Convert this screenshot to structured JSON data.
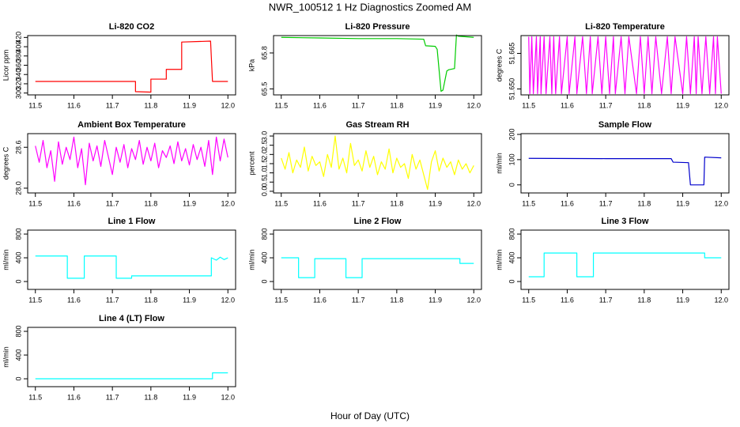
{
  "title": "NWR_100512  1 Hz Diagnostics Zoomed AM",
  "x_axis_label": "Hour of Day (UTC)",
  "chart_data": [
    {
      "type": "line",
      "title": "Li-820 CO2",
      "ylabel": "Licor ppm",
      "color": "#ff0000",
      "x": [
        11.5,
        11.76,
        11.76,
        11.8,
        11.8,
        11.84,
        11.84,
        11.88,
        11.88,
        11.955,
        11.96,
        12.0
      ],
      "values": [
        325,
        325,
        303,
        302,
        330,
        330,
        351,
        351,
        410,
        412,
        325,
        325
      ],
      "xlim": [
        11.48,
        12.02
      ],
      "xticks": [
        11.5,
        11.6,
        11.7,
        11.8,
        11.9,
        {
          "value": 12,
          "label": "12.0"
        }
      ],
      "ylim": [
        296,
        424
      ],
      "yticks": [
        300,
        320,
        340,
        360,
        380,
        400,
        420
      ]
    },
    {
      "type": "line",
      "title": "Li-820 Pressure",
      "ylabel": "kPa",
      "color": "#00cc00",
      "x": [
        11.5,
        11.6,
        11.7,
        11.8,
        11.87,
        11.875,
        11.9,
        11.905,
        11.915,
        11.92,
        11.93,
        11.935,
        11.95,
        11.955,
        11.96,
        12.0
      ],
      "values": [
        65.93,
        65.925,
        65.92,
        65.92,
        65.915,
        65.86,
        65.855,
        65.83,
        65.48,
        65.49,
        65.65,
        65.66,
        65.67,
        65.95,
        65.94,
        65.93
      ],
      "xlim": [
        11.48,
        12.02
      ],
      "xticks": [
        11.5,
        11.6,
        11.7,
        11.8,
        11.9,
        {
          "value": 12,
          "label": "12.0"
        }
      ],
      "ylim": [
        65.45,
        65.945
      ],
      "yticks": [
        65.5,
        65.8
      ]
    },
    {
      "type": "line",
      "title": "Li-820 Temperature",
      "ylabel": "degrees C",
      "color": "#ff00ff",
      "x": [
        11.5,
        11.503,
        11.508,
        11.512,
        11.52,
        11.523,
        11.53,
        11.532,
        11.54,
        11.545,
        11.555,
        11.56,
        11.565,
        11.57,
        11.58,
        11.585,
        11.6,
        11.605,
        11.62,
        11.625,
        11.64,
        11.65,
        11.66,
        11.665,
        11.68,
        11.69,
        11.7,
        11.71,
        11.72,
        11.725,
        11.74,
        11.75,
        11.76,
        11.78,
        11.79,
        11.8,
        11.81,
        11.82,
        11.83,
        11.845,
        11.86,
        11.87,
        11.88,
        11.9,
        11.91,
        11.92,
        11.93,
        11.935,
        11.94,
        11.95,
        11.96,
        11.97,
        11.98,
        11.985,
        11.99,
        12.0
      ],
      "values": [
        51.672,
        51.648,
        51.672,
        51.648,
        51.672,
        51.648,
        51.672,
        51.648,
        51.672,
        51.648,
        51.672,
        51.648,
        51.672,
        51.648,
        51.672,
        51.648,
        51.672,
        51.648,
        51.672,
        51.648,
        51.672,
        51.648,
        51.672,
        51.648,
        51.672,
        51.648,
        51.672,
        51.648,
        51.672,
        51.648,
        51.672,
        51.648,
        51.672,
        51.648,
        51.672,
        51.648,
        51.672,
        51.648,
        51.672,
        51.648,
        51.672,
        51.648,
        51.672,
        51.648,
        51.672,
        51.648,
        51.672,
        51.648,
        51.672,
        51.648,
        51.672,
        51.648,
        51.672,
        51.648,
        51.672,
        51.648
      ],
      "xlim": [
        11.48,
        12.02
      ],
      "xticks": [
        11.5,
        11.6,
        11.7,
        11.8,
        11.9,
        {
          "value": 12,
          "label": "12.0"
        }
      ],
      "ylim": [
        51.6475,
        51.6725
      ],
      "yticks": [
        {
          "value": 51.65,
          "label": "51.650"
        },
        51.665
      ]
    },
    {
      "type": "line",
      "title": "Ambient Box Temperature",
      "ylabel": "degrees C",
      "color": "#ff00ff",
      "x": [
        11.5,
        11.51,
        11.52,
        11.53,
        11.54,
        11.55,
        11.56,
        11.57,
        11.58,
        11.59,
        11.6,
        11.61,
        11.62,
        11.63,
        11.64,
        11.65,
        11.66,
        11.67,
        11.68,
        11.69,
        11.7,
        11.71,
        11.72,
        11.73,
        11.74,
        11.75,
        11.76,
        11.77,
        11.78,
        11.79,
        11.8,
        11.81,
        11.82,
        11.83,
        11.84,
        11.85,
        11.86,
        11.87,
        11.88,
        11.89,
        11.9,
        11.91,
        11.92,
        11.93,
        11.94,
        11.95,
        11.96,
        11.97,
        11.98,
        11.99,
        12.0
      ],
      "values": [
        28.62,
        28.38,
        28.7,
        28.3,
        28.55,
        28.1,
        28.68,
        28.35,
        28.6,
        28.42,
        28.75,
        28.3,
        28.58,
        28.05,
        28.66,
        28.4,
        28.62,
        28.32,
        28.7,
        28.45,
        28.2,
        28.6,
        28.38,
        28.64,
        28.3,
        28.58,
        28.42,
        28.7,
        28.35,
        28.6,
        28.4,
        28.66,
        28.3,
        28.55,
        28.45,
        28.62,
        28.36,
        28.68,
        28.4,
        28.58,
        28.34,
        28.64,
        28.42,
        28.6,
        28.32,
        28.7,
        28.2,
        28.75,
        28.4,
        28.72,
        28.45
      ],
      "xlim": [
        11.48,
        12.02
      ],
      "xticks": [
        11.5,
        11.6,
        11.7,
        11.8,
        11.9,
        {
          "value": 12,
          "label": "12.0"
        }
      ],
      "ylim": [
        27.93,
        28.8
      ],
      "yticks": [
        {
          "value": 28,
          "label": "28.0"
        },
        28.6
      ]
    },
    {
      "type": "line",
      "title": "Gas Stream RH",
      "ylabel": "percent",
      "color": "#ffff00",
      "x": [
        11.5,
        11.51,
        11.52,
        11.53,
        11.54,
        11.55,
        11.56,
        11.57,
        11.58,
        11.59,
        11.6,
        11.61,
        11.62,
        11.63,
        11.64,
        11.65,
        11.66,
        11.67,
        11.68,
        11.69,
        11.7,
        11.71,
        11.72,
        11.73,
        11.74,
        11.75,
        11.76,
        11.77,
        11.78,
        11.79,
        11.8,
        11.81,
        11.82,
        11.83,
        11.84,
        11.85,
        11.86,
        11.87,
        11.88,
        11.89,
        11.9,
        11.91,
        11.92,
        11.93,
        11.94,
        11.95,
        11.96,
        11.97,
        11.98,
        11.99,
        12.0
      ],
      "values": [
        1.8,
        1.2,
        2.1,
        1.0,
        1.7,
        1.3,
        2.4,
        1.1,
        1.9,
        1.4,
        1.6,
        0.8,
        2.0,
        1.3,
        3.0,
        1.2,
        1.8,
        1.0,
        2.6,
        1.4,
        1.7,
        1.1,
        2.2,
        1.3,
        1.9,
        0.9,
        1.6,
        1.2,
        2.3,
        1.0,
        1.8,
        1.3,
        1.5,
        0.7,
        2.0,
        1.2,
        1.7,
        0.9,
        0.1,
        1.6,
        2.2,
        1.1,
        1.8,
        1.3,
        1.6,
        0.9,
        1.7,
        1.2,
        1.5,
        1.0,
        1.4
      ],
      "xlim": [
        11.48,
        12.02
      ],
      "xticks": [
        11.5,
        11.6,
        11.7,
        11.8,
        11.9,
        {
          "value": 12,
          "label": "12.0"
        }
      ],
      "ylim": [
        -0.09,
        3.13
      ],
      "yticks": [
        {
          "value": 0,
          "label": "0.0"
        },
        0.5,
        {
          "value": 1,
          "label": "1.0"
        },
        1.5,
        {
          "value": 2,
          "label": "2.0"
        },
        2.5,
        {
          "value": 3,
          "label": "3.0"
        }
      ]
    },
    {
      "type": "line",
      "title": "Sample Flow",
      "ylabel": "ml/min",
      "color": "#0000cc",
      "x": [
        11.5,
        11.7,
        11.87,
        11.875,
        11.915,
        11.92,
        11.955,
        11.957,
        12.0
      ],
      "values": [
        105,
        104,
        104,
        90,
        88,
        0,
        0,
        110,
        107
      ],
      "xlim": [
        11.48,
        12.02
      ],
      "xticks": [
        11.5,
        11.6,
        11.7,
        11.8,
        11.9,
        {
          "value": 12,
          "label": "12.0"
        }
      ],
      "ylim": [
        -32,
        203
      ],
      "yticks": [
        0,
        100,
        200
      ]
    },
    {
      "type": "line",
      "title": "Line 1 Flow",
      "ylabel": "ml/min",
      "color": "#00ffff",
      "x": [
        11.5,
        11.583,
        11.583,
        11.627,
        11.627,
        11.71,
        11.71,
        11.75,
        11.75,
        11.957,
        11.957,
        11.97,
        11.98,
        11.99,
        12.0
      ],
      "values": [
        430,
        430,
        55,
        55,
        430,
        430,
        55,
        55,
        95,
        95,
        400,
        360,
        410,
        370,
        400
      ],
      "xlim": [
        11.48,
        12.02
      ],
      "xticks": [
        11.5,
        11.6,
        11.7,
        11.8,
        11.9,
        {
          "value": 12,
          "label": "12.0"
        }
      ],
      "ylim": [
        -133,
        867
      ],
      "yticks": [
        0,
        400,
        800
      ]
    },
    {
      "type": "line",
      "title": "Line 2 Flow",
      "ylabel": "ml/min",
      "color": "#00ffff",
      "x": [
        11.5,
        11.545,
        11.545,
        11.587,
        11.587,
        11.668,
        11.668,
        11.71,
        11.71,
        11.964,
        11.964,
        12.0
      ],
      "values": [
        400,
        400,
        65,
        65,
        385,
        385,
        65,
        65,
        385,
        385,
        305,
        305
      ],
      "xlim": [
        11.48,
        12.02
      ],
      "xticks": [
        11.5,
        11.6,
        11.7,
        11.8,
        11.9,
        {
          "value": 12,
          "label": "12.0"
        }
      ],
      "ylim": [
        -133,
        867
      ],
      "yticks": [
        0,
        400,
        800
      ]
    },
    {
      "type": "line",
      "title": "Line 3 Flow",
      "ylabel": "ml/min",
      "color": "#00ffff",
      "x": [
        11.5,
        11.54,
        11.54,
        11.625,
        11.625,
        11.668,
        11.668,
        11.957,
        11.957,
        12.0
      ],
      "values": [
        80,
        80,
        480,
        480,
        80,
        80,
        480,
        480,
        400,
        400
      ],
      "xlim": [
        11.48,
        12.02
      ],
      "xticks": [
        11.5,
        11.6,
        11.7,
        11.8,
        11.9,
        {
          "value": 12,
          "label": "12.0"
        }
      ],
      "ylim": [
        -133,
        867
      ],
      "yticks": [
        0,
        400,
        800
      ]
    },
    {
      "type": "line",
      "title": "Line 4 (LT) Flow",
      "ylabel": "ml/min",
      "color": "#00ffff",
      "x": [
        11.5,
        11.96,
        11.96,
        12.0
      ],
      "values": [
        0,
        0,
        100,
        100
      ],
      "xlim": [
        11.48,
        12.02
      ],
      "xticks": [
        11.5,
        11.6,
        11.7,
        11.8,
        11.9,
        {
          "value": 12,
          "label": "12.0"
        }
      ],
      "ylim": [
        -133,
        867
      ],
      "yticks": [
        0,
        400,
        800
      ]
    }
  ]
}
